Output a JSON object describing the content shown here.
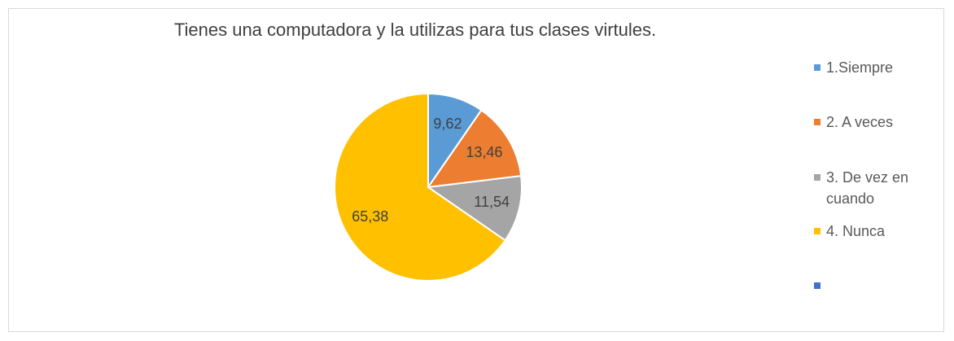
{
  "chart_data": {
    "type": "pie",
    "title": "Tienes  una computadora y la utilizas para tus clases virtules.",
    "categories": [
      "1.Siempre",
      "2. A veces",
      "3. De vez en cuando",
      "4. Nunca",
      null
    ],
    "values": [
      9.62,
      13.46,
      11.54,
      65.38,
      null
    ],
    "value_labels": [
      "9,62",
      "13,46",
      "11,54",
      "65,38",
      null
    ],
    "colors": [
      "#5b9bd5",
      "#ed7d31",
      "#a5a5a5",
      "#ffc000",
      "#4472c4"
    ],
    "legend": "right"
  }
}
